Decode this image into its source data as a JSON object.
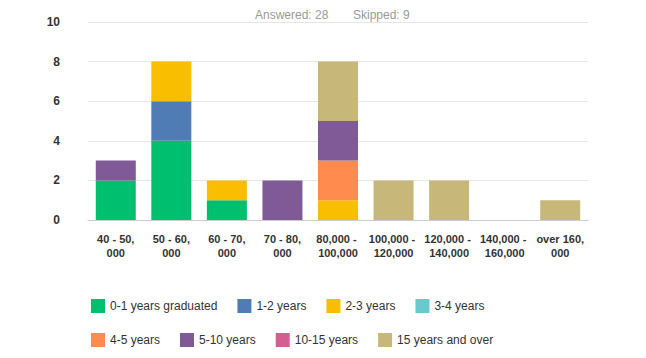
{
  "chart_data": {
    "type": "bar",
    "annotations": [
      "Answered: 28",
      "Skipped: 9"
    ],
    "categories": [
      "40 - 50,000",
      "50 - 60,000",
      "60 - 70,000",
      "70 - 80,000",
      "80,000 - 100,000",
      "100,000 - 120,000",
      "120,000 - 140,000",
      "140,000 - 160,000",
      "over 160,000"
    ],
    "series": [
      {
        "name": "0-1 years graduated",
        "color": "#00bf6f",
        "values": [
          2,
          4,
          1,
          0,
          0,
          0,
          0,
          0,
          0
        ]
      },
      {
        "name": "1-2 years",
        "color": "#507cb6",
        "values": [
          0,
          2,
          0,
          0,
          0,
          0,
          0,
          0,
          0
        ]
      },
      {
        "name": "2-3 years",
        "color": "#f9be00",
        "values": [
          0,
          2,
          1,
          0,
          1,
          0,
          0,
          0,
          0
        ]
      },
      {
        "name": "3-4 years",
        "color": "#6bc8cd",
        "values": [
          0,
          0,
          0,
          0,
          0,
          0,
          0,
          0,
          0
        ]
      },
      {
        "name": "4-5 years",
        "color": "#ff8b4f",
        "values": [
          0,
          0,
          0,
          0,
          2,
          0,
          0,
          0,
          0
        ]
      },
      {
        "name": "5-10 years",
        "color": "#7f5a96",
        "values": [
          1,
          0,
          0,
          2,
          2,
          0,
          0,
          0,
          0
        ]
      },
      {
        "name": "10-15 years",
        "color": "#d25f90",
        "values": [
          0,
          0,
          0,
          0,
          0,
          0,
          0,
          0,
          0
        ]
      },
      {
        "name": "15 years and over",
        "color": "#c7b879",
        "values": [
          0,
          0,
          0,
          0,
          3,
          2,
          2,
          0,
          1
        ]
      }
    ],
    "ylim": [
      0,
      10
    ],
    "yticks": [
      0,
      2,
      4,
      6,
      8,
      10
    ],
    "stacked": true,
    "grid": true,
    "legend": "bottom"
  }
}
